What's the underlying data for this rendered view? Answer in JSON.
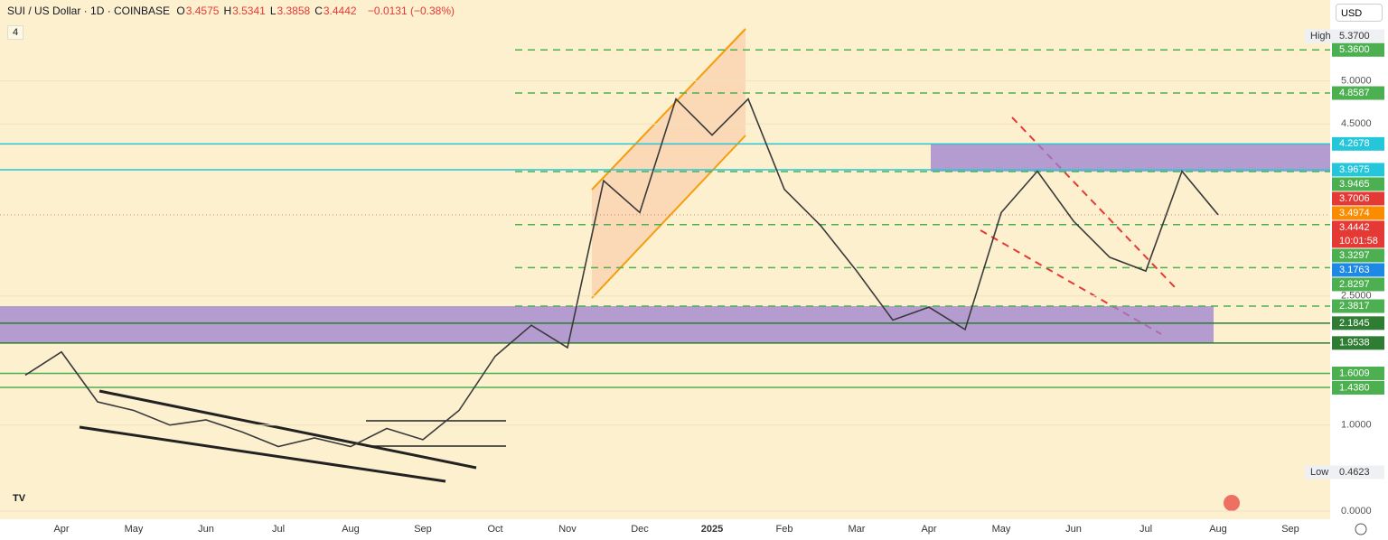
{
  "header": {
    "symbol": "SUI / US Dollar · 1D · COINBASE",
    "ohlc": [
      {
        "key": "O",
        "value": "3.4575"
      },
      {
        "key": "H",
        "value": "3.5341"
      },
      {
        "key": "L",
        "value": "3.3858"
      },
      {
        "key": "C",
        "value": "3.4442"
      }
    ],
    "change": "−0.0131 (−0.38%)",
    "indicators": "4",
    "currency": "USD"
  },
  "chart_data": {
    "type": "line",
    "color": "#3a3a3a",
    "categories": [
      null,
      "Apr",
      null,
      "May",
      null,
      "Jun",
      null,
      "Jul",
      null,
      "Aug",
      null,
      "Sep",
      null,
      "Oct",
      null,
      "Nov",
      null,
      "Dec",
      null,
      "2025",
      null,
      "Feb",
      null,
      "Mar",
      null,
      "Apr",
      null,
      "May",
      null,
      "Jun",
      null,
      "Jul",
      null,
      "Aug",
      null,
      "Sep"
    ],
    "values": [
      1.58,
      1.85,
      1.27,
      1.17,
      1.0,
      1.06,
      0.92,
      0.75,
      0.85,
      0.75,
      0.96,
      0.83,
      1.17,
      1.8,
      2.16,
      1.9,
      3.84,
      3.47,
      4.79,
      4.37,
      4.79,
      3.74,
      3.32,
      2.79,
      2.22,
      2.37,
      2.11,
      3.47,
      3.95,
      3.37,
      2.95,
      2.79,
      3.95,
      3.4442,
      null,
      null
    ],
    "ylim": [
      0,
      5.94
    ],
    "yticks": [
      {
        "value": 0,
        "label": "0.0000"
      },
      {
        "value": 1,
        "label": "1.0000"
      },
      {
        "value": 2.5,
        "label": "2.5000"
      },
      {
        "value": 4.5,
        "label": "4.5000"
      },
      {
        "value": 5,
        "label": "5.0000"
      }
    ],
    "grid": true,
    "zones": [
      {
        "low": 3.9465,
        "high": 4.2678,
        "color": "#9b7fd0"
      },
      {
        "low": 1.9538,
        "high": 2.3817,
        "color": "#9b7fd0"
      }
    ],
    "levels": [
      {
        "value": 5.36,
        "label": "5.3600",
        "color": "#4caf50",
        "style": "dashed"
      },
      {
        "value": 4.8587,
        "color": "#4caf50",
        "style": "dashed"
      },
      {
        "value": 4.2678,
        "color": "#26c6da",
        "style": "solid"
      },
      {
        "value": 3.9675,
        "color": "#26c6da",
        "style": "solid"
      },
      {
        "value": 3.9465,
        "color": "#4caf50",
        "style": "dashed"
      },
      {
        "value": 3.3297,
        "color": "#4caf50",
        "style": "dashed"
      },
      {
        "value": 2.8297,
        "color": "#4caf50",
        "style": "dashed"
      },
      {
        "value": 2.3817,
        "color": "#4caf50",
        "style": "dashed"
      },
      {
        "value": 2.1845,
        "color": "#2e7d32",
        "style": "solid"
      },
      {
        "value": 1.9538,
        "color": "#2e7d32",
        "style": "solid"
      },
      {
        "value": 1.6009,
        "color": "#4caf50",
        "style": "solid"
      },
      {
        "value": 1.438,
        "label": "1.4380",
        "color": "#4caf50",
        "style": "solid"
      }
    ],
    "axis_labels": [
      {
        "value": 3.7006,
        "color": "#e53935"
      },
      {
        "value": 3.4974,
        "color": "#fb8c00"
      },
      {
        "value": 3.4442,
        "color": "#e53935",
        "extra": "10:01:58"
      },
      {
        "value": 3.1763,
        "color": "#1e88e5"
      }
    ],
    "high": {
      "name": "High",
      "value": 5.37,
      "label": "5.3700"
    },
    "low": {
      "name": "Low",
      "value": 0.4623
    }
  }
}
